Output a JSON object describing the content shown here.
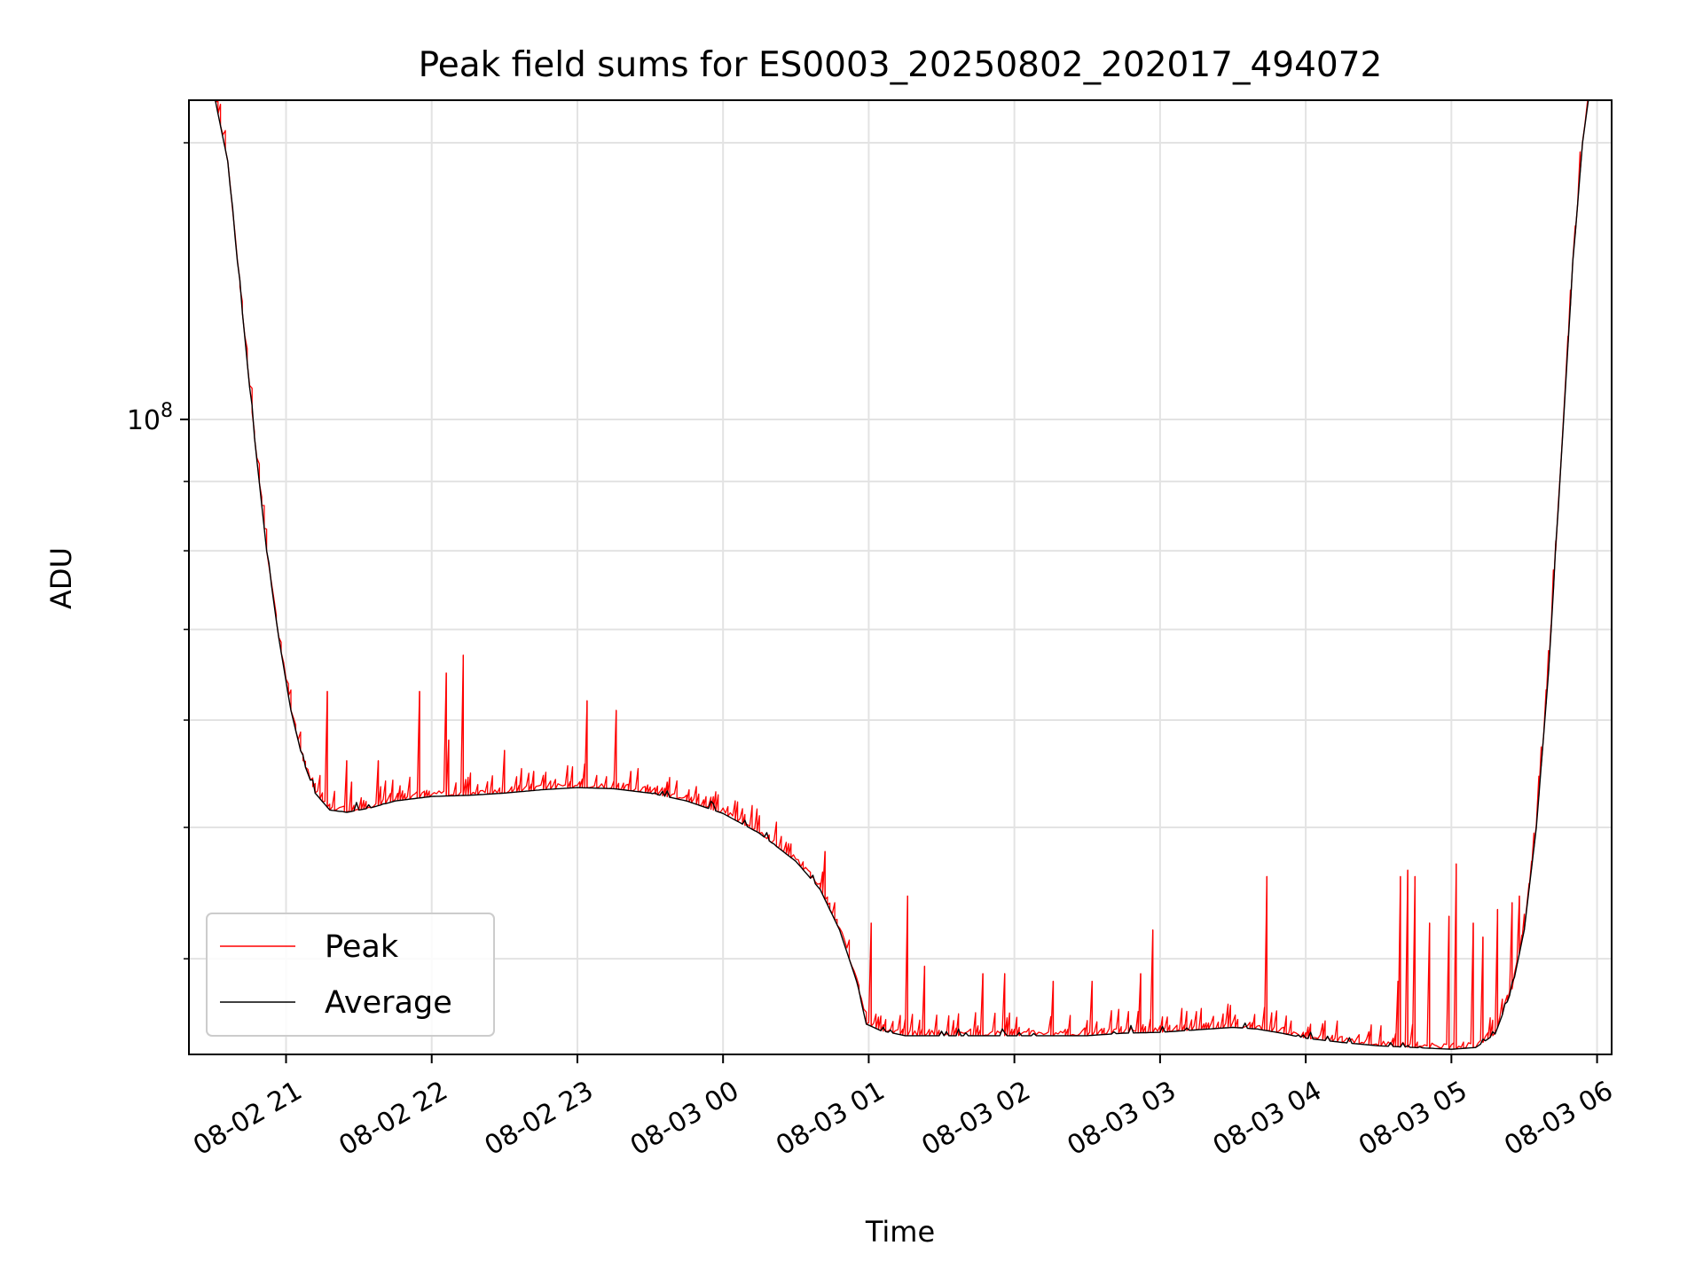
{
  "chart_data": {
    "type": "line",
    "title": "Peak field sums for ES0003_20250802_202017_494072",
    "xlabel": "Time",
    "ylabel": "ADU",
    "y_scale": "log",
    "ylim": [
      34000000,
      172000000
    ],
    "xlim": [
      "08-02 20:20",
      "08-03 06:06"
    ],
    "grid": true,
    "legend_position": "lower-left",
    "x_ticks": [
      "08-02 21",
      "08-02 22",
      "08-02 23",
      "08-03 00",
      "08-03 01",
      "08-03 02",
      "08-03 03",
      "08-03 04",
      "08-03 05",
      "08-03 06"
    ],
    "y_major_ticks": [
      {
        "value": 100000000,
        "label": "10",
        "exponent": "8"
      }
    ],
    "y_minor_ticks": [
      40000000,
      50000000,
      60000000,
      70000000,
      80000000,
      90000000,
      160000000
    ],
    "series": [
      {
        "name": "Peak",
        "color": "#ff0000",
        "spikes": [
          [
            "08-02 21:17",
            63000000
          ],
          [
            "08-02 21:25",
            56000000
          ],
          [
            "08-02 21:27",
            54000000
          ],
          [
            "08-02 21:38",
            56000000
          ],
          [
            "08-02 21:55",
            63000000
          ],
          [
            "08-02 22:06",
            65000000
          ],
          [
            "08-02 22:07",
            58000000
          ],
          [
            "08-02 22:13",
            67000000
          ],
          [
            "08-02 22:30",
            57000000
          ],
          [
            "08-02 22:42",
            55000000
          ],
          [
            "08-02 23:04",
            62000000
          ],
          [
            "08-02 23:16",
            61000000
          ],
          [
            "08-02 23:22",
            55000000
          ],
          [
            "08-02 23:37",
            54000000
          ],
          [
            "08-03 00:42",
            48000000
          ],
          [
            "08-03 01:01",
            42500000
          ],
          [
            "08-03 01:16",
            44500000
          ],
          [
            "08-03 01:23",
            39500000
          ],
          [
            "08-03 01:47",
            39000000
          ],
          [
            "08-03 01:56",
            39000000
          ],
          [
            "08-03 02:16",
            38500000
          ],
          [
            "08-03 02:32",
            38500000
          ],
          [
            "08-03 02:52",
            39000000
          ],
          [
            "08-03 02:57",
            42000000
          ],
          [
            "08-03 03:44",
            46000000
          ],
          [
            "08-03 04:38",
            38500000
          ],
          [
            "08-03 04:39",
            46000000
          ],
          [
            "08-03 04:42",
            46500000
          ],
          [
            "08-03 04:45",
            46000000
          ],
          [
            "08-03 04:51",
            42500000
          ],
          [
            "08-03 04:59",
            43000000
          ],
          [
            "08-03 05:02",
            47000000
          ],
          [
            "08-03 05:09",
            42500000
          ],
          [
            "08-03 05:13",
            41500000
          ],
          [
            "08-03 05:19",
            43500000
          ],
          [
            "08-03 05:25",
            44000000
          ],
          [
            "08-03 05:28",
            44500000
          ]
        ]
      },
      {
        "name": "Average",
        "color": "#000000",
        "points": [
          [
            "08-02 20:30",
            175000000
          ],
          [
            "08-02 20:36",
            155000000
          ],
          [
            "08-02 20:42",
            120000000
          ],
          [
            "08-02 20:47",
            97000000
          ],
          [
            "08-02 20:52",
            80000000
          ],
          [
            "08-02 20:57",
            69000000
          ],
          [
            "08-02 21:02",
            61000000
          ],
          [
            "08-02 21:07",
            56000000
          ],
          [
            "08-02 21:12",
            53000000
          ],
          [
            "08-02 21:18",
            51500000
          ],
          [
            "08-02 21:25",
            51300000
          ],
          [
            "08-02 21:35",
            51700000
          ],
          [
            "08-02 21:45",
            52300000
          ],
          [
            "08-02 22:00",
            52700000
          ],
          [
            "08-02 22:15",
            52800000
          ],
          [
            "08-02 22:30",
            53000000
          ],
          [
            "08-02 22:45",
            53300000
          ],
          [
            "08-02 23:00",
            53500000
          ],
          [
            "08-02 23:15",
            53400000
          ],
          [
            "08-02 23:30",
            53000000
          ],
          [
            "08-02 23:45",
            52300000
          ],
          [
            "08-03 00:00",
            51200000
          ],
          [
            "08-03 00:15",
            49500000
          ],
          [
            "08-03 00:30",
            47200000
          ],
          [
            "08-03 00:40",
            45000000
          ],
          [
            "08-03 00:48",
            42000000
          ],
          [
            "08-03 00:55",
            38500000
          ],
          [
            "08-03 00:59",
            35800000
          ],
          [
            "08-03 01:05",
            35400000
          ],
          [
            "08-03 01:15",
            35100000
          ],
          [
            "08-03 01:30",
            35100000
          ],
          [
            "08-03 02:00",
            35100000
          ],
          [
            "08-03 02:30",
            35100000
          ],
          [
            "08-03 02:45",
            35250000
          ],
          [
            "08-03 03:00",
            35300000
          ],
          [
            "08-03 03:15",
            35450000
          ],
          [
            "08-03 03:30",
            35600000
          ],
          [
            "08-03 03:40",
            35500000
          ],
          [
            "08-03 03:50",
            35250000
          ],
          [
            "08-03 04:00",
            34950000
          ],
          [
            "08-03 04:15",
            34700000
          ],
          [
            "08-03 04:30",
            34500000
          ],
          [
            "08-03 04:45",
            34400000
          ],
          [
            "08-03 05:00",
            34300000
          ],
          [
            "08-03 05:10",
            34400000
          ],
          [
            "08-03 05:18",
            35200000
          ],
          [
            "08-03 05:25",
            38000000
          ],
          [
            "08-03 05:30",
            42000000
          ],
          [
            "08-03 05:35",
            50000000
          ],
          [
            "08-03 05:40",
            65000000
          ],
          [
            "08-03 05:45",
            92000000
          ],
          [
            "08-03 05:50",
            130000000
          ],
          [
            "08-03 05:54",
            160000000
          ],
          [
            "08-03 05:57",
            175000000
          ]
        ]
      }
    ]
  }
}
